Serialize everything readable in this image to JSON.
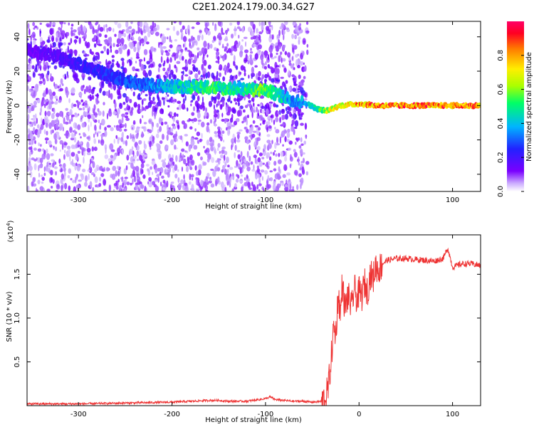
{
  "title": "C2E1.2024.179.00.34.G27",
  "chart_data": [
    {
      "type": "heatmap",
      "xlabel": "Height of straight line (km)",
      "ylabel": "Frequency (Hz)",
      "xlim": [
        -355,
        130
      ],
      "ylim": [
        -50,
        49
      ],
      "x_ticks": [
        -300,
        -200,
        -100,
        0,
        100
      ],
      "x_tick_labels": [
        "-300",
        "-200",
        "-100",
        "0",
        "100"
      ],
      "y_ticks": [
        -40,
        -20,
        0,
        20,
        40
      ],
      "y_tick_labels": [
        "-40",
        "-20",
        "0",
        "20",
        "40"
      ],
      "colorbar": {
        "label": "Normalized spectral amplitude",
        "range": [
          0,
          1
        ],
        "ticks": [
          0.0,
          0.2,
          0.4,
          0.6,
          0.8
        ],
        "tick_labels": [
          "0.0",
          "0.2",
          "0.4",
          "0.6",
          "0.8"
        ],
        "colors": [
          "#ffffff",
          "#7a00ff",
          "#2222ff",
          "#00b4ff",
          "#00ff66",
          "#aaff00",
          "#ffee00",
          "#ff7a00",
          "#ff0022",
          "#ff0066"
        ]
      },
      "ridge": {
        "x": [
          -355,
          -320,
          -290,
          -260,
          -230,
          -200,
          -170,
          -145,
          -130,
          -110,
          -100,
          -70,
          -55,
          -45,
          -35,
          -20,
          0,
          20,
          60,
          100,
          130
        ],
        "frequency": [
          32,
          28,
          22,
          16,
          12,
          11,
          11,
          10,
          10,
          9,
          9,
          3,
          1,
          -2,
          -3,
          0,
          1,
          0,
          0,
          0,
          0
        ],
        "amplitude": [
          0.15,
          0.2,
          0.25,
          0.3,
          0.35,
          0.45,
          0.55,
          0.55,
          0.5,
          0.6,
          0.6,
          0.4,
          0.45,
          0.55,
          0.7,
          0.8,
          0.9,
          0.95,
          0.95,
          0.95,
          0.95
        ]
      }
    },
    {
      "type": "line",
      "xlabel": "Height of straight line (km)",
      "ylabel": "SNR (10 * v/v)",
      "y_multiplier_label": "(x10",
      "y_multiplier_exp": "4",
      "y_multiplier_close": ")",
      "xlim": [
        -355,
        130
      ],
      "ylim": [
        0,
        1.95
      ],
      "x_ticks": [
        -300,
        -200,
        -100,
        0,
        100
      ],
      "x_tick_labels": [
        "-300",
        "-200",
        "-100",
        "0",
        "100"
      ],
      "y_ticks": [
        0.5,
        1.0,
        1.5
      ],
      "y_tick_labels": [
        "0.5",
        "1.0",
        "1.5"
      ],
      "series": [
        {
          "color": "#ee3333",
          "x": [
            -355,
            -300,
            -250,
            -200,
            -180,
            -160,
            -150,
            -140,
            -120,
            -100,
            -95,
            -90,
            -80,
            -70,
            -60,
            -50,
            -40,
            -36,
            -33,
            -30,
            -27,
            -25,
            -22,
            -20,
            -18,
            -15,
            -12,
            -10,
            -8,
            -5,
            -2,
            0,
            3,
            6,
            9,
            12,
            15,
            18,
            21,
            25,
            30,
            35,
            40,
            50,
            60,
            70,
            80,
            90,
            95,
            100,
            110,
            120,
            130
          ],
          "values": [
            0.02,
            0.02,
            0.03,
            0.04,
            0.05,
            0.06,
            0.06,
            0.05,
            0.05,
            0.08,
            0.1,
            0.07,
            0.06,
            0.05,
            0.05,
            0.04,
            0.05,
            0.08,
            0.2,
            0.5,
            0.9,
            0.8,
            1.3,
            1.0,
            1.4,
            1.1,
            1.25,
            1.2,
            1.1,
            1.35,
            1.2,
            1.3,
            1.25,
            1.4,
            1.3,
            1.5,
            1.45,
            1.6,
            1.55,
            1.62,
            1.66,
            1.67,
            1.68,
            1.68,
            1.67,
            1.66,
            1.65,
            1.68,
            1.8,
            1.58,
            1.62,
            1.62,
            1.6
          ]
        }
      ]
    }
  ]
}
